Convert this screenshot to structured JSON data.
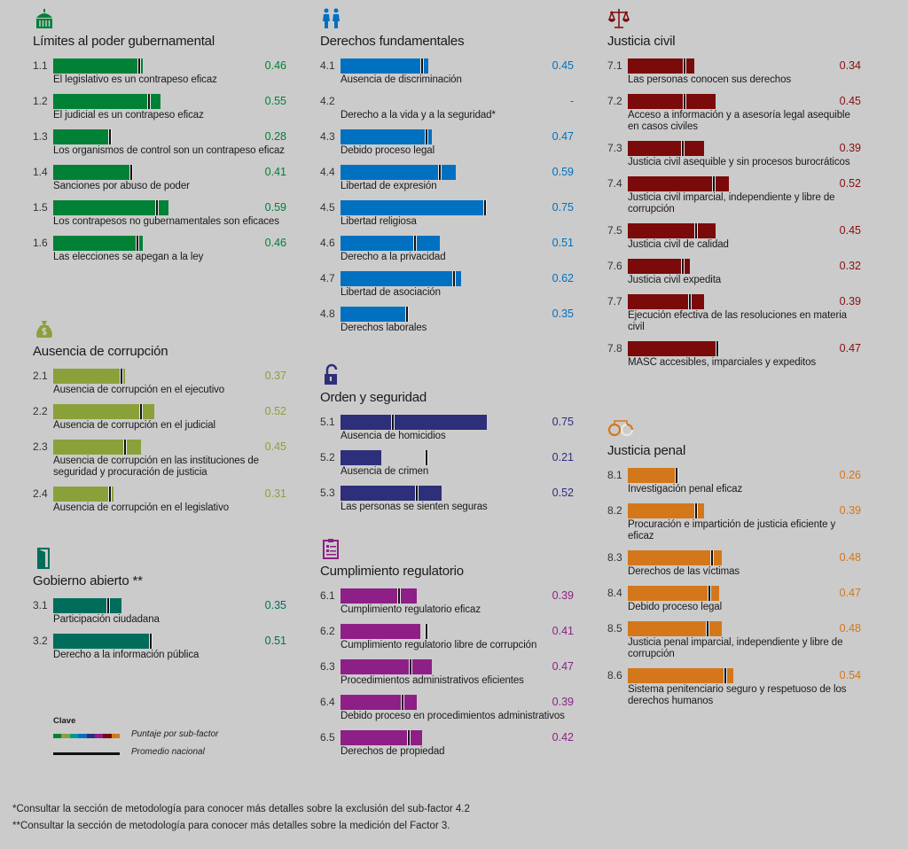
{
  "chart_data": {
    "type": "bar",
    "orientation": "horizontal",
    "xlim": [
      0,
      1
    ],
    "sections": [
      {
        "id": "1",
        "title": "Límites al poder gubernamental",
        "color": "#008136",
        "icon": "capitol-icon",
        "items": [
          {
            "code": "1.1",
            "label": "El legislativo es un contrapeso eficaz",
            "value": 0.46,
            "value_label": "0.46",
            "national_avg": 0.44
          },
          {
            "code": "1.2",
            "label": "El judicial es un contrapeso eficaz",
            "value": 0.55,
            "value_label": "0.55",
            "national_avg": 0.49
          },
          {
            "code": "1.3",
            "label": "Los organismos de control son un contrapeso eficaz",
            "value": 0.28,
            "value_label": "0.28",
            "national_avg": 0.29
          },
          {
            "code": "1.4",
            "label": "Sanciones por abuso de poder",
            "value": 0.41,
            "value_label": "0.41",
            "national_avg": 0.4
          },
          {
            "code": "1.5",
            "label": "Los contrapesos no gubernamentales son eficaces",
            "value": 0.59,
            "value_label": "0.59",
            "national_avg": 0.53
          },
          {
            "code": "1.6",
            "label": "Las elecciones se apegan a la ley",
            "value": 0.46,
            "value_label": "0.46",
            "national_avg": 0.43
          }
        ]
      },
      {
        "id": "2",
        "title": "Ausencia de corrupción",
        "color": "#8aa13a",
        "icon": "money-bag-icon",
        "items": [
          {
            "code": "2.1",
            "label": "Ausencia de corrupción en el ejecutivo",
            "value": 0.37,
            "value_label": "0.37",
            "national_avg": 0.35
          },
          {
            "code": "2.2",
            "label": "Ausencia de corrupción en el judicial",
            "value": 0.52,
            "value_label": "0.52",
            "national_avg": 0.45
          },
          {
            "code": "2.3",
            "label": "Ausencia de corrupción en las instituciones de seguridad y procuración de justicia",
            "value": 0.45,
            "value_label": "0.45",
            "national_avg": 0.37
          },
          {
            "code": "2.4",
            "label": "Ausencia de corrupción en el legislativo",
            "value": 0.31,
            "value_label": "0.31",
            "national_avg": 0.29
          }
        ]
      },
      {
        "id": "3",
        "title": "Gobierno abierto **",
        "color": "#006d5b",
        "icon": "open-door-icon",
        "items": [
          {
            "code": "3.1",
            "label": "Participación ciudadana",
            "value": 0.35,
            "value_label": "0.35",
            "national_avg": 0.28
          },
          {
            "code": "3.2",
            "label": "Derecho a la información pública",
            "value": 0.51,
            "value_label": "0.51",
            "national_avg": 0.5
          }
        ]
      },
      {
        "id": "4",
        "title": "Derechos fundamentales",
        "color": "#0070c0",
        "icon": "people-icon",
        "items": [
          {
            "code": "4.1",
            "label": "Ausencia de discriminación",
            "value": 0.45,
            "value_label": "0.45",
            "national_avg": 0.42
          },
          {
            "code": "4.2",
            "label": "Derecho a la vida y a la seguridad*",
            "value": null,
            "value_label": "-",
            "national_avg": null
          },
          {
            "code": "4.3",
            "label": "Debido proceso legal",
            "value": 0.47,
            "value_label": "0.47",
            "national_avg": 0.44
          },
          {
            "code": "4.4",
            "label": "Libertad de expresión",
            "value": 0.59,
            "value_label": "0.59",
            "national_avg": 0.51
          },
          {
            "code": "4.5",
            "label": "Libertad religiosa",
            "value": 0.75,
            "value_label": "0.75",
            "national_avg": 0.74
          },
          {
            "code": "4.6",
            "label": "Derecho a la privacidad",
            "value": 0.51,
            "value_label": "0.51",
            "national_avg": 0.38
          },
          {
            "code": "4.7",
            "label": "Libertad de asociación",
            "value": 0.62,
            "value_label": "0.62",
            "national_avg": 0.58
          },
          {
            "code": "4.8",
            "label": "Derechos laborales",
            "value": 0.35,
            "value_label": "0.35",
            "national_avg": 0.34
          }
        ]
      },
      {
        "id": "5",
        "title": "Orden y seguridad",
        "color": "#2e2f7a",
        "icon": "padlock-icon",
        "items": [
          {
            "code": "5.1",
            "label": "Ausencia de homicidios",
            "value": 0.75,
            "value_label": "0.75",
            "national_avg": 0.27
          },
          {
            "code": "5.2",
            "label": "Ausencia de crimen",
            "value": 0.21,
            "value_label": "0.21",
            "national_avg": 0.44
          },
          {
            "code": "5.3",
            "label": "Las personas se sienten seguras",
            "value": 0.52,
            "value_label": "0.52",
            "national_avg": 0.39
          }
        ]
      },
      {
        "id": "6",
        "title": "Cumplimiento regulatorio",
        "color": "#8e1f86",
        "icon": "clipboard-icon",
        "items": [
          {
            "code": "6.1",
            "label": "Cumplimiento regulatorio eficaz",
            "value": 0.39,
            "value_label": "0.39",
            "national_avg": 0.3
          },
          {
            "code": "6.2",
            "label": "Cumplimiento regulatorio libre de corrupción",
            "value": 0.41,
            "value_label": "0.41",
            "national_avg": 0.44
          },
          {
            "code": "6.3",
            "label": "Procedimientos administrativos eficientes",
            "value": 0.47,
            "value_label": "0.47",
            "national_avg": 0.36
          },
          {
            "code": "6.4",
            "label": "Debido proceso en procedimientos administrativos",
            "value": 0.39,
            "value_label": "0.39",
            "national_avg": 0.32
          },
          {
            "code": "6.5",
            "label": "Derechos de propiedad",
            "value": 0.42,
            "value_label": "0.42",
            "national_avg": 0.35
          }
        ]
      },
      {
        "id": "7",
        "title": "Justicia civil",
        "color": "#7b0a0a",
        "icon": "scales-icon",
        "items": [
          {
            "code": "7.1",
            "label": "Las personas conocen sus derechos",
            "value": 0.34,
            "value_label": "0.34",
            "national_avg": 0.29
          },
          {
            "code": "7.2",
            "label": "Acceso a información y a asesoría legal asequible en casos civiles",
            "value": 0.45,
            "value_label": "0.45",
            "national_avg": 0.29
          },
          {
            "code": "7.3",
            "label": "Justicia civil asequible y sin procesos burocráticos",
            "value": 0.39,
            "value_label": "0.39",
            "national_avg": 0.28
          },
          {
            "code": "7.4",
            "label": "Justicia civil imparcial, independiente y libre de corrupción",
            "value": 0.52,
            "value_label": "0.52",
            "national_avg": 0.44
          },
          {
            "code": "7.5",
            "label": "Justicia civil de calidad",
            "value": 0.45,
            "value_label": "0.45",
            "national_avg": 0.35
          },
          {
            "code": "7.6",
            "label": "Justicia civil expedita",
            "value": 0.32,
            "value_label": "0.32",
            "national_avg": 0.28
          },
          {
            "code": "7.7",
            "label": "Ejecución efectiva de las resoluciones en materia civil",
            "value": 0.39,
            "value_label": "0.39",
            "national_avg": 0.32
          },
          {
            "code": "7.8",
            "label": "MASC accesibles, imparciales y expeditos",
            "value": 0.47,
            "value_label": "0.47",
            "national_avg": 0.46
          }
        ]
      },
      {
        "id": "8",
        "title": "Justicia penal",
        "color": "#d4771a",
        "icon": "handcuffs-icon",
        "items": [
          {
            "code": "8.1",
            "label": "Investigación penal eficaz",
            "value": 0.26,
            "value_label": "0.26",
            "national_avg": 0.25
          },
          {
            "code": "8.2",
            "label": "Procuración e impartición de justicia eficiente y eficaz",
            "value": 0.39,
            "value_label": "0.39",
            "national_avg": 0.35
          },
          {
            "code": "8.3",
            "label": "Derechos de las víctimas",
            "value": 0.48,
            "value_label": "0.48",
            "national_avg": 0.43
          },
          {
            "code": "8.4",
            "label": "Debido proceso legal",
            "value": 0.47,
            "value_label": "0.47",
            "national_avg": 0.42
          },
          {
            "code": "8.5",
            "label": "Justicia penal imparcial, independiente y libre de corrupción",
            "value": 0.48,
            "value_label": "0.48",
            "national_avg": 0.41
          },
          {
            "code": "8.6",
            "label": "Sistema penitenciario seguro y respetuoso de los derechos humanos",
            "value": 0.54,
            "value_label": "0.54",
            "national_avg": 0.5
          }
        ]
      }
    ],
    "legend": {
      "title": "Clave",
      "score_label": "Puntaje por sub-factor",
      "avg_label": "Promedio nacional",
      "palette": [
        "#008136",
        "#8aa13a",
        "#009a8a",
        "#0070c0",
        "#2e2f7a",
        "#8e1f86",
        "#7b0a0a",
        "#d4771a"
      ]
    }
  },
  "footnotes": [
    "*Consultar la sección de metodología para conocer más detalles sobre la exclusión del sub-factor 4.2",
    "**Consultar la sección de metodología para conocer más detalles sobre la medición del Factor 3."
  ]
}
